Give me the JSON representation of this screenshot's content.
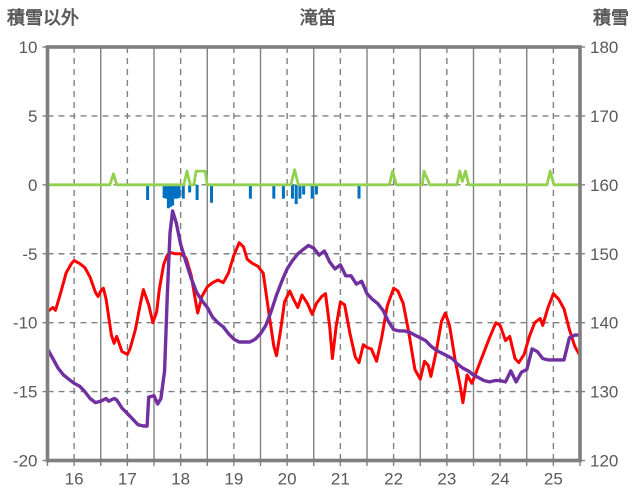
{
  "header": {
    "left_axis_label": "積雪以外",
    "title": "滝笛",
    "right_axis_label": "積雪"
  },
  "chart_data": {
    "type": "line",
    "title": "滝笛",
    "left_axis": {
      "label": "積雪以外",
      "min": -20,
      "max": 10,
      "step": 5,
      "ticks": [
        10,
        5,
        0,
        -5,
        -10,
        -15,
        -20
      ]
    },
    "right_axis": {
      "label": "積雪",
      "min": 120,
      "max": 180,
      "step": 10,
      "ticks": [
        180,
        170,
        160,
        150,
        140,
        130,
        120
      ]
    },
    "x_axis": {
      "min": 16,
      "max": 26,
      "day_labels": [
        "16",
        "17",
        "18",
        "19",
        "20",
        "21",
        "22",
        "23",
        "24",
        "25"
      ],
      "minor_tick_step": 0.5
    },
    "grid": {
      "line_color": "#808080",
      "frame_color": "#7F7F7F",
      "text_color": "#595959",
      "solid_vertical_at": "integer days",
      "dashed_vertical_at": "half days",
      "dashed_horizontal_at": [
        5,
        0,
        -5,
        -10,
        -15
      ]
    },
    "series": [
      {
        "name": "blue-bars",
        "type": "bar",
        "axis": "left",
        "color": "#0070C0",
        "points": [
          [
            17.88,
            -1.1
          ],
          [
            18.19,
            -0.95
          ],
          [
            18.23,
            -1.0
          ],
          [
            18.27,
            -1.7
          ],
          [
            18.31,
            -1.6
          ],
          [
            18.35,
            -1.5
          ],
          [
            18.39,
            -1.0
          ],
          [
            18.43,
            -1.0
          ],
          [
            18.47,
            -0.95
          ],
          [
            18.55,
            -1.0
          ],
          [
            18.67,
            -0.55
          ],
          [
            18.81,
            -1.1
          ],
          [
            19.08,
            -1.3
          ],
          [
            19.81,
            -1.0
          ],
          [
            20.25,
            -1.0
          ],
          [
            20.43,
            -1.0
          ],
          [
            20.6,
            -1.0
          ],
          [
            20.67,
            -1.4
          ],
          [
            20.74,
            -1.0
          ],
          [
            20.81,
            -0.7
          ],
          [
            20.97,
            -1.0
          ],
          [
            21.05,
            -0.7
          ],
          [
            21.85,
            -1.0
          ]
        ]
      },
      {
        "name": "red-line",
        "type": "line",
        "axis": "left",
        "color": "#FF0000",
        "points": [
          [
            16.0,
            -9.2
          ],
          [
            16.1,
            -8.9
          ],
          [
            16.15,
            -9.1
          ],
          [
            16.25,
            -7.8
          ],
          [
            16.35,
            -6.4
          ],
          [
            16.45,
            -5.7
          ],
          [
            16.5,
            -5.5
          ],
          [
            16.6,
            -5.7
          ],
          [
            16.7,
            -6.0
          ],
          [
            16.8,
            -6.7
          ],
          [
            16.9,
            -7.8
          ],
          [
            16.95,
            -8.1
          ],
          [
            17.0,
            -7.7
          ],
          [
            17.05,
            -7.5
          ],
          [
            17.1,
            -8.3
          ],
          [
            17.2,
            -10.9
          ],
          [
            17.25,
            -11.5
          ],
          [
            17.3,
            -11.0
          ],
          [
            17.4,
            -12.1
          ],
          [
            17.5,
            -12.3
          ],
          [
            17.55,
            -11.9
          ],
          [
            17.65,
            -10.5
          ],
          [
            17.75,
            -8.5
          ],
          [
            17.8,
            -7.6
          ],
          [
            17.9,
            -8.7
          ],
          [
            17.98,
            -10.0
          ],
          [
            18.05,
            -9.2
          ],
          [
            18.1,
            -7.6
          ],
          [
            18.18,
            -5.8
          ],
          [
            18.25,
            -5.1
          ],
          [
            18.3,
            -4.9
          ],
          [
            18.4,
            -5.0
          ],
          [
            18.5,
            -5.0
          ],
          [
            18.6,
            -5.3
          ],
          [
            18.7,
            -6.6
          ],
          [
            18.77,
            -8.2
          ],
          [
            18.82,
            -9.3
          ],
          [
            18.9,
            -8.1
          ],
          [
            19.0,
            -7.4
          ],
          [
            19.1,
            -7.1
          ],
          [
            19.2,
            -6.9
          ],
          [
            19.3,
            -7.1
          ],
          [
            19.4,
            -6.4
          ],
          [
            19.5,
            -5.1
          ],
          [
            19.6,
            -4.2
          ],
          [
            19.68,
            -4.5
          ],
          [
            19.75,
            -5.4
          ],
          [
            19.85,
            -5.7
          ],
          [
            19.95,
            -5.9
          ],
          [
            20.05,
            -6.4
          ],
          [
            20.15,
            -9.1
          ],
          [
            20.25,
            -11.7
          ],
          [
            20.3,
            -12.4
          ],
          [
            20.38,
            -10.5
          ],
          [
            20.45,
            -8.5
          ],
          [
            20.55,
            -7.7
          ],
          [
            20.62,
            -8.3
          ],
          [
            20.7,
            -8.9
          ],
          [
            20.78,
            -8.0
          ],
          [
            20.88,
            -8.6
          ],
          [
            20.97,
            -9.4
          ],
          [
            21.05,
            -8.6
          ],
          [
            21.15,
            -8.1
          ],
          [
            21.22,
            -7.9
          ],
          [
            21.3,
            -10.3
          ],
          [
            21.35,
            -12.6
          ],
          [
            21.42,
            -10.3
          ],
          [
            21.5,
            -8.5
          ],
          [
            21.58,
            -8.7
          ],
          [
            21.68,
            -10.8
          ],
          [
            21.78,
            -12.5
          ],
          [
            21.85,
            -12.9
          ],
          [
            21.93,
            -11.6
          ],
          [
            22.0,
            -11.8
          ],
          [
            22.08,
            -11.9
          ],
          [
            22.18,
            -12.8
          ],
          [
            22.28,
            -11.0
          ],
          [
            22.38,
            -8.8
          ],
          [
            22.5,
            -7.5
          ],
          [
            22.58,
            -7.7
          ],
          [
            22.68,
            -8.6
          ],
          [
            22.78,
            -10.6
          ],
          [
            22.9,
            -13.4
          ],
          [
            23.0,
            -14.1
          ],
          [
            23.08,
            -12.8
          ],
          [
            23.15,
            -13.1
          ],
          [
            23.2,
            -13.9
          ],
          [
            23.3,
            -12.1
          ],
          [
            23.4,
            -9.9
          ],
          [
            23.47,
            -9.3
          ],
          [
            23.55,
            -10.2
          ],
          [
            23.65,
            -12.6
          ],
          [
            23.75,
            -14.6
          ],
          [
            23.8,
            -15.8
          ],
          [
            23.88,
            -13.8
          ],
          [
            23.97,
            -14.4
          ],
          [
            24.05,
            -13.6
          ],
          [
            24.15,
            -12.6
          ],
          [
            24.3,
            -11.1
          ],
          [
            24.42,
            -10.0
          ],
          [
            24.5,
            -10.2
          ],
          [
            24.6,
            -11.3
          ],
          [
            24.68,
            -11.0
          ],
          [
            24.78,
            -12.6
          ],
          [
            24.85,
            -12.9
          ],
          [
            24.95,
            -12.3
          ],
          [
            25.05,
            -11.0
          ],
          [
            25.15,
            -10.0
          ],
          [
            25.25,
            -9.7
          ],
          [
            25.3,
            -10.2
          ],
          [
            25.4,
            -8.9
          ],
          [
            25.5,
            -7.9
          ],
          [
            25.6,
            -8.3
          ],
          [
            25.7,
            -9.0
          ],
          [
            25.8,
            -10.5
          ],
          [
            25.9,
            -11.7
          ],
          [
            26.0,
            -12.4
          ]
        ]
      },
      {
        "name": "purple-line",
        "type": "line",
        "axis": "right",
        "color": "#7030A0",
        "points": [
          [
            16.0,
            136.2
          ],
          [
            16.1,
            134.8
          ],
          [
            16.2,
            133.4
          ],
          [
            16.3,
            132.4
          ],
          [
            16.4,
            131.8
          ],
          [
            16.5,
            131.2
          ],
          [
            16.6,
            130.8
          ],
          [
            16.7,
            130.0
          ],
          [
            16.8,
            129.0
          ],
          [
            16.9,
            128.4
          ],
          [
            17.0,
            128.6
          ],
          [
            17.1,
            129.0
          ],
          [
            17.15,
            128.6
          ],
          [
            17.25,
            129.0
          ],
          [
            17.3,
            128.8
          ],
          [
            17.4,
            127.6
          ],
          [
            17.5,
            126.8
          ],
          [
            17.6,
            126.0
          ],
          [
            17.7,
            125.2
          ],
          [
            17.8,
            125.0
          ],
          [
            17.87,
            125.0
          ],
          [
            17.9,
            129.2
          ],
          [
            18.0,
            129.4
          ],
          [
            18.07,
            128.2
          ],
          [
            18.13,
            129.0
          ],
          [
            18.2,
            133.0
          ],
          [
            18.25,
            144.0
          ],
          [
            18.3,
            153.0
          ],
          [
            18.35,
            156.2
          ],
          [
            18.42,
            154.4
          ],
          [
            18.5,
            151.4
          ],
          [
            18.6,
            148.8
          ],
          [
            18.7,
            146.4
          ],
          [
            18.8,
            144.4
          ],
          [
            18.9,
            143.2
          ],
          [
            19.0,
            142.2
          ],
          [
            19.1,
            140.8
          ],
          [
            19.2,
            140.0
          ],
          [
            19.3,
            139.4
          ],
          [
            19.4,
            138.4
          ],
          [
            19.5,
            137.6
          ],
          [
            19.6,
            137.2
          ],
          [
            19.7,
            137.2
          ],
          [
            19.8,
            137.2
          ],
          [
            19.9,
            137.6
          ],
          [
            20.0,
            138.4
          ],
          [
            20.1,
            139.6
          ],
          [
            20.2,
            141.6
          ],
          [
            20.3,
            144.0
          ],
          [
            20.4,
            146.0
          ],
          [
            20.5,
            147.8
          ],
          [
            20.6,
            149.0
          ],
          [
            20.7,
            150.0
          ],
          [
            20.8,
            150.6
          ],
          [
            20.9,
            151.2
          ],
          [
            21.0,
            150.8
          ],
          [
            21.1,
            149.8
          ],
          [
            21.2,
            150.4
          ],
          [
            21.3,
            148.8
          ],
          [
            21.4,
            147.8
          ],
          [
            21.5,
            148.4
          ],
          [
            21.6,
            146.8
          ],
          [
            21.7,
            146.8
          ],
          [
            21.8,
            145.6
          ],
          [
            21.9,
            146.0
          ],
          [
            22.0,
            144.2
          ],
          [
            22.1,
            143.4
          ],
          [
            22.2,
            142.8
          ],
          [
            22.3,
            141.8
          ],
          [
            22.4,
            140.2
          ],
          [
            22.5,
            139.0
          ],
          [
            22.6,
            138.8
          ],
          [
            22.7,
            138.8
          ],
          [
            22.8,
            138.6
          ],
          [
            22.9,
            138.2
          ],
          [
            23.0,
            137.8
          ],
          [
            23.1,
            137.4
          ],
          [
            23.2,
            136.6
          ],
          [
            23.3,
            136.0
          ],
          [
            23.4,
            135.6
          ],
          [
            23.5,
            135.2
          ],
          [
            23.6,
            134.8
          ],
          [
            23.7,
            134.0
          ],
          [
            23.8,
            133.4
          ],
          [
            23.9,
            133.0
          ],
          [
            24.0,
            132.4
          ],
          [
            24.1,
            132.0
          ],
          [
            24.2,
            131.6
          ],
          [
            24.3,
            131.4
          ],
          [
            24.4,
            131.6
          ],
          [
            24.5,
            131.6
          ],
          [
            24.6,
            131.4
          ],
          [
            24.7,
            133.0
          ],
          [
            24.8,
            131.4
          ],
          [
            24.9,
            132.8
          ],
          [
            25.0,
            133.2
          ],
          [
            25.1,
            136.2
          ],
          [
            25.2,
            135.8
          ],
          [
            25.3,
            134.8
          ],
          [
            25.4,
            134.6
          ],
          [
            25.5,
            134.6
          ],
          [
            25.6,
            134.6
          ],
          [
            25.7,
            134.6
          ],
          [
            25.8,
            137.8
          ],
          [
            25.9,
            138.2
          ],
          [
            26.0,
            138.2
          ]
        ]
      },
      {
        "name": "green-line",
        "type": "line",
        "axis": "left",
        "color": "#92D050",
        "points": [
          [
            16.0,
            0
          ],
          [
            17.17,
            0
          ],
          [
            17.24,
            0.8
          ],
          [
            17.3,
            0
          ],
          [
            18.56,
            0
          ],
          [
            18.62,
            1.0
          ],
          [
            18.68,
            0
          ],
          [
            18.75,
            0
          ],
          [
            18.79,
            1.0
          ],
          [
            18.96,
            1.0
          ],
          [
            19.0,
            0
          ],
          [
            20.57,
            0
          ],
          [
            20.64,
            1.1
          ],
          [
            20.71,
            0
          ],
          [
            22.42,
            0
          ],
          [
            22.48,
            1.0
          ],
          [
            22.55,
            0
          ],
          [
            23.04,
            0
          ],
          [
            23.07,
            1.0
          ],
          [
            23.18,
            0
          ],
          [
            23.69,
            0
          ],
          [
            23.74,
            1.0
          ],
          [
            23.79,
            0.25
          ],
          [
            23.85,
            1.0
          ],
          [
            23.91,
            0
          ],
          [
            25.38,
            0
          ],
          [
            25.44,
            1.0
          ],
          [
            25.51,
            0
          ],
          [
            26.0,
            0
          ]
        ]
      }
    ]
  }
}
